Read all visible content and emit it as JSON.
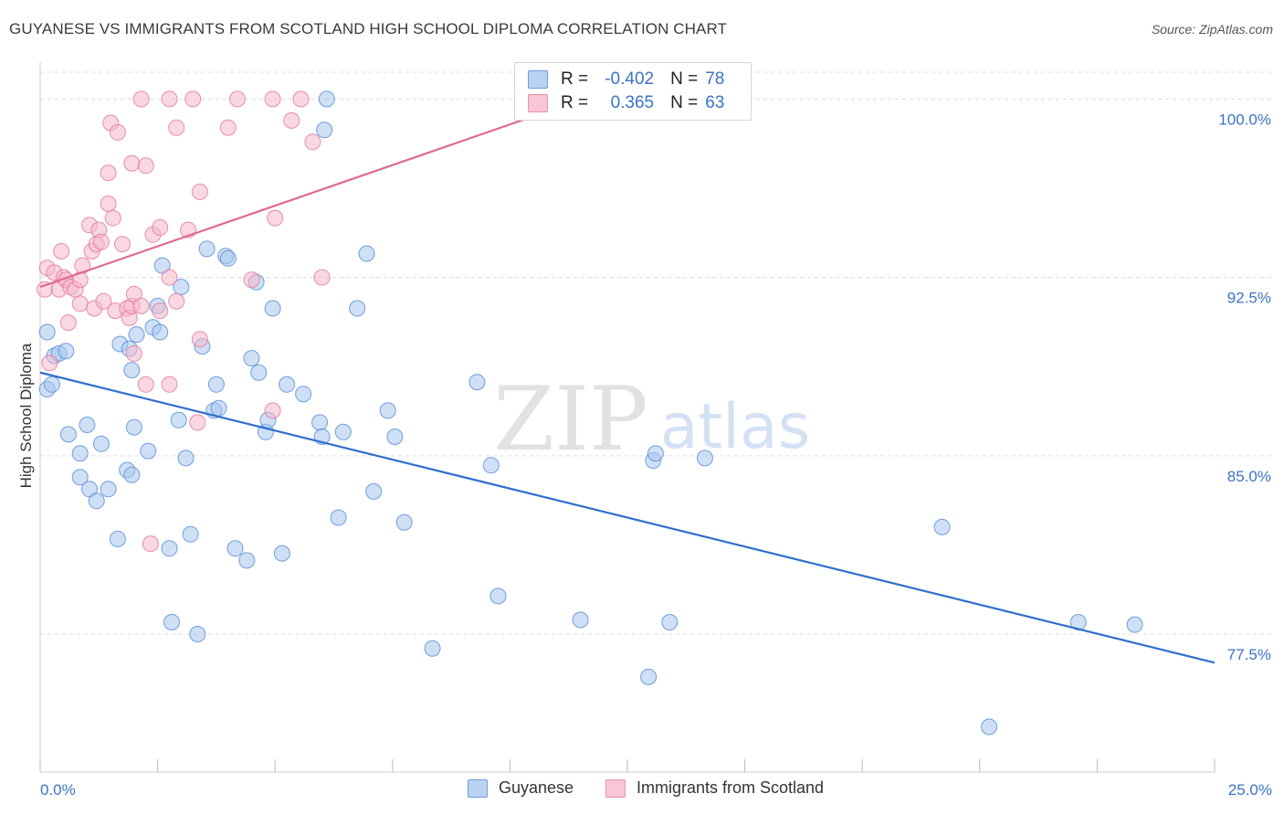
{
  "title": "GUYANESE VS IMMIGRANTS FROM SCOTLAND HIGH SCHOOL DIPLOMA CORRELATION CHART",
  "source": "Source: ZipAtlas.com",
  "watermark": {
    "zip": "ZIP",
    "atlas": "atlas"
  },
  "colors": {
    "blue_fill": "#a8c6ee",
    "blue_stroke": "#5b8fd6",
    "blue_line": "#2f6fcf",
    "pink_fill": "#f5b8cb",
    "pink_stroke": "#e37b9e",
    "pink_line": "#e06a94",
    "axis_text": "#3b74c4",
    "grid": "#dddddd"
  },
  "legend": {
    "r_label": "R =",
    "n_label": "N =",
    "rows": [
      {
        "series": "Guyanese",
        "r": "-0.402",
        "n": "78"
      },
      {
        "series": "Immigrants from Scotland",
        "r": "0.365",
        "n": "63"
      }
    ]
  },
  "chart_data": {
    "type": "scatter",
    "title": "GUYANESE VS IMMIGRANTS FROM SCOTLAND HIGH SCHOOL DIPLOMA CORRELATION CHART",
    "xlabel": "",
    "ylabel": "High School Diploma",
    "xlim": [
      0,
      25
    ],
    "ylim": [
      71.7,
      101.4
    ],
    "x_tick_labels": [
      "0.0%",
      "25.0%"
    ],
    "y_ticks": [
      77.5,
      85.0,
      92.5,
      100.0
    ],
    "y_tick_labels": [
      "77.5%",
      "85.0%",
      "92.5%",
      "100.0%"
    ],
    "grid": "horizontal dashed",
    "legend_position": "top-center",
    "series": [
      {
        "name": "Guyanese",
        "trend": {
          "x": [
            0.0,
            25.0
          ],
          "y": [
            88.5,
            76.3
          ]
        },
        "points": [
          [
            0.15,
            87.8
          ],
          [
            0.15,
            90.2
          ],
          [
            0.25,
            88.0
          ],
          [
            0.3,
            89.2
          ],
          [
            0.4,
            89.3
          ],
          [
            0.55,
            89.4
          ],
          [
            0.6,
            85.9
          ],
          [
            0.85,
            85.1
          ],
          [
            0.85,
            84.1
          ],
          [
            1.0,
            86.3
          ],
          [
            1.05,
            83.6
          ],
          [
            1.2,
            83.1
          ],
          [
            1.3,
            85.5
          ],
          [
            1.45,
            83.6
          ],
          [
            1.65,
            81.5
          ],
          [
            1.7,
            89.7
          ],
          [
            1.85,
            84.4
          ],
          [
            1.9,
            89.5
          ],
          [
            1.95,
            88.6
          ],
          [
            2.05,
            90.1
          ],
          [
            1.95,
            84.2
          ],
          [
            2.0,
            86.2
          ],
          [
            2.3,
            85.2
          ],
          [
            2.4,
            90.4
          ],
          [
            2.5,
            91.3
          ],
          [
            2.55,
            90.2
          ],
          [
            2.6,
            93.0
          ],
          [
            2.75,
            81.1
          ],
          [
            2.8,
            78.0
          ],
          [
            2.95,
            86.5
          ],
          [
            3.0,
            92.1
          ],
          [
            3.1,
            84.9
          ],
          [
            3.2,
            81.7
          ],
          [
            3.35,
            77.5
          ],
          [
            3.45,
            89.6
          ],
          [
            3.55,
            93.7
          ],
          [
            3.7,
            86.9
          ],
          [
            3.75,
            88.0
          ],
          [
            3.8,
            87.0
          ],
          [
            3.95,
            93.4
          ],
          [
            4.0,
            93.3
          ],
          [
            4.15,
            81.1
          ],
          [
            4.4,
            80.6
          ],
          [
            4.5,
            89.1
          ],
          [
            4.6,
            92.3
          ],
          [
            4.65,
            88.5
          ],
          [
            4.8,
            86.0
          ],
          [
            4.85,
            86.5
          ],
          [
            4.95,
            91.2
          ],
          [
            5.15,
            80.9
          ],
          [
            5.25,
            88.0
          ],
          [
            5.6,
            87.6
          ],
          [
            5.95,
            86.4
          ],
          [
            6.0,
            85.8
          ],
          [
            6.05,
            98.7
          ],
          [
            6.1,
            100.0
          ],
          [
            6.35,
            82.4
          ],
          [
            6.45,
            86.0
          ],
          [
            6.75,
            91.2
          ],
          [
            7.1,
            83.5
          ],
          [
            6.95,
            93.5
          ],
          [
            7.4,
            86.9
          ],
          [
            7.55,
            85.8
          ],
          [
            7.75,
            82.2
          ],
          [
            8.35,
            76.9
          ],
          [
            9.3,
            88.1
          ],
          [
            9.6,
            84.6
          ],
          [
            9.75,
            79.1
          ],
          [
            11.5,
            78.1
          ],
          [
            13.05,
            84.8
          ],
          [
            12.95,
            75.7
          ],
          [
            13.4,
            78.0
          ],
          [
            13.1,
            85.1
          ],
          [
            14.15,
            84.9
          ],
          [
            19.2,
            82.0
          ],
          [
            20.2,
            73.6
          ],
          [
            23.3,
            77.9
          ],
          [
            22.1,
            78.0
          ]
        ]
      },
      {
        "name": "Immigrants from Scotland",
        "trend": {
          "x": [
            0.0,
            12.0
          ],
          "y": [
            92.1,
            100.3
          ]
        },
        "points": [
          [
            0.1,
            92.0
          ],
          [
            0.15,
            92.9
          ],
          [
            0.2,
            88.9
          ],
          [
            0.3,
            92.7
          ],
          [
            0.4,
            92.0
          ],
          [
            0.45,
            93.6
          ],
          [
            0.5,
            92.5
          ],
          [
            0.55,
            92.4
          ],
          [
            0.6,
            90.6
          ],
          [
            0.65,
            92.1
          ],
          [
            0.75,
            92.0
          ],
          [
            0.85,
            91.4
          ],
          [
            0.85,
            92.4
          ],
          [
            0.9,
            93.0
          ],
          [
            1.05,
            94.7
          ],
          [
            1.1,
            93.6
          ],
          [
            1.15,
            91.2
          ],
          [
            1.2,
            93.9
          ],
          [
            1.25,
            94.5
          ],
          [
            1.3,
            94.0
          ],
          [
            1.35,
            91.5
          ],
          [
            1.45,
            96.9
          ],
          [
            1.45,
            95.6
          ],
          [
            1.5,
            99.0
          ],
          [
            1.55,
            95.0
          ],
          [
            1.65,
            98.6
          ],
          [
            1.6,
            91.1
          ],
          [
            1.75,
            93.9
          ],
          [
            1.85,
            91.2
          ],
          [
            1.9,
            90.8
          ],
          [
            1.95,
            91.3
          ],
          [
            1.95,
            97.3
          ],
          [
            2.0,
            91.8
          ],
          [
            2.0,
            89.3
          ],
          [
            2.15,
            91.3
          ],
          [
            2.15,
            100.0
          ],
          [
            2.25,
            97.2
          ],
          [
            2.25,
            88.0
          ],
          [
            2.35,
            81.3
          ],
          [
            2.4,
            94.3
          ],
          [
            2.55,
            94.6
          ],
          [
            2.55,
            91.1
          ],
          [
            2.75,
            100.0
          ],
          [
            2.75,
            92.5
          ],
          [
            2.75,
            88.0
          ],
          [
            2.9,
            98.8
          ],
          [
            2.9,
            91.5
          ],
          [
            3.15,
            94.5
          ],
          [
            3.35,
            86.4
          ],
          [
            3.4,
            89.9
          ],
          [
            3.4,
            96.1
          ],
          [
            3.25,
            100.0
          ],
          [
            4.0,
            98.8
          ],
          [
            4.2,
            100.0
          ],
          [
            4.5,
            92.4
          ],
          [
            4.95,
            86.9
          ],
          [
            5.0,
            95.0
          ],
          [
            5.35,
            99.1
          ],
          [
            5.55,
            100.0
          ],
          [
            5.8,
            98.2
          ],
          [
            4.95,
            100.0
          ],
          [
            11.75,
            100.0
          ],
          [
            6.0,
            92.5
          ]
        ]
      }
    ]
  }
}
